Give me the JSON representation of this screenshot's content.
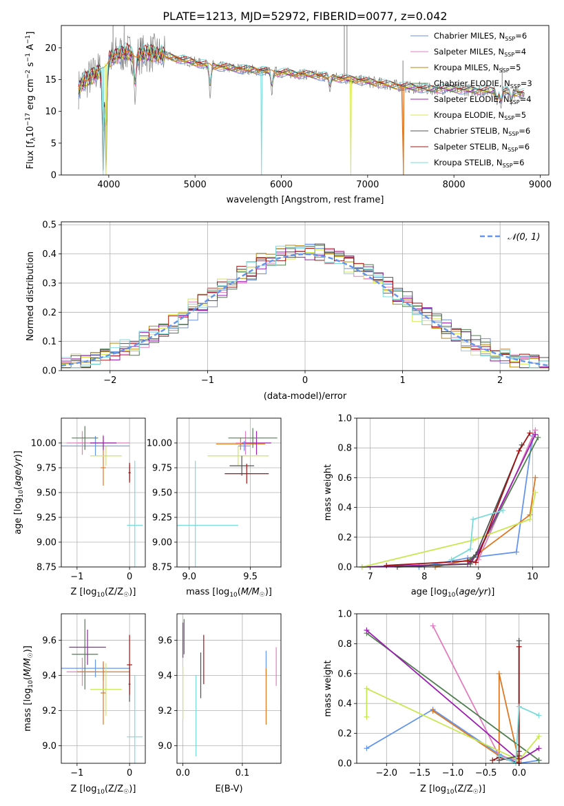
{
  "title": "PLATE=1213, MJD=52972, FIBERID=0077, z=0.042",
  "colors": {
    "Chabrier MILES": "#6a8fdc",
    "Salpeter MILES": "#e27cbe",
    "Kroupa MILES": "#b8860b",
    "Chabrier ELODIE": "#4e7e4e",
    "Salpeter ELODIE": "#9a1fb0",
    "Kroupa ELODIE": "#d4e84a",
    "Chabrier STELIB": "#505050",
    "Salpeter STELIB": "#a01212",
    "Kroupa STELIB": "#7adada",
    "Orange": "#dd7722",
    "Lime": "#c8e850",
    "Normal": "#6495ed"
  },
  "chart_data": [
    {
      "id": "spectrum",
      "type": "line",
      "xlabel": "wavelength [Angstrom, rest frame]",
      "ylabel": "Flux [f_λ 10^-17 erg cm^-2 s^-1 A^-1]",
      "xlim": [
        3450,
        9100
      ],
      "ylim": [
        0,
        23.5
      ],
      "xticks": [
        4000,
        5000,
        6000,
        7000,
        8000,
        9000
      ],
      "yticks": [
        0,
        5,
        10,
        15,
        20
      ],
      "legend": "top-right",
      "legend_entries": [
        {
          "base": "Chabrier MILES, N",
          "sub": "SSP",
          "tail": "=6",
          "color": "Chabrier MILES"
        },
        {
          "base": "Salpeter MILES, N",
          "sub": "SSP",
          "tail": "=4",
          "color": "Salpeter MILES"
        },
        {
          "base": "Kroupa MILES, N",
          "sub": "SSP",
          "tail": "=5",
          "color": "Kroupa MILES"
        },
        {
          "base": "Chabrier ELODIE, N",
          "sub": "SSP",
          "tail": "=3",
          "color": "Chabrier ELODIE"
        },
        {
          "base": "Salpeter ELODIE, N",
          "sub": "SSP",
          "tail": "=4",
          "color": "Salpeter ELODIE"
        },
        {
          "base": "Kroupa ELODIE, N",
          "sub": "SSP",
          "tail": "=5",
          "color": "Kroupa ELODIE"
        },
        {
          "base": "Chabrier STELIB, N",
          "sub": "SSP",
          "tail": "=6",
          "color": "Chabrier STELIB"
        },
        {
          "base": "Salpeter STELIB, N",
          "sub": "SSP",
          "tail": "=6",
          "color": "Salpeter STELIB"
        },
        {
          "base": "Kroupa STELIB, N",
          "sub": "SSP",
          "tail": "=6",
          "color": "Kroupa STELIB"
        }
      ],
      "continuum": {
        "x": [
          3650,
          3700,
          3800,
          3900,
          4000,
          4100,
          4200,
          4300,
          4400,
          4500,
          4700,
          4900,
          5100,
          5300,
          5500,
          5700,
          5900,
          6100,
          6300,
          6500,
          6700,
          6900,
          7100,
          7300,
          7500,
          7700,
          7900,
          8100,
          8300,
          8500,
          8700,
          8800
        ],
        "y": [
          13.5,
          14.5,
          15.5,
          16.5,
          18.0,
          19.0,
          19.3,
          18.8,
          19.0,
          19.2,
          18.6,
          18.0,
          17.4,
          17.0,
          16.7,
          16.5,
          16.2,
          16.0,
          15.8,
          15.5,
          15.2,
          14.9,
          14.5,
          14.1,
          13.8,
          13.5,
          13.6,
          13.4,
          13.3,
          13.2,
          13.0,
          12.9
        ]
      },
      "noise_until": 4650,
      "dips": [
        {
          "x": 3935,
          "y": 0
        },
        {
          "x": 3968,
          "y": 0
        },
        {
          "x": 4305,
          "y": 11
        },
        {
          "x": 5175,
          "y": 12
        },
        {
          "x": 5890,
          "y": 12.5
        },
        {
          "x": 6563,
          "y": 13
        },
        {
          "x": 8500,
          "y": 11
        },
        {
          "x": 8545,
          "y": 10.5
        },
        {
          "x": 8665,
          "y": 11
        }
      ],
      "deep_dips": [
        {
          "x": 3935,
          "color": "Kroupa STELIB"
        },
        {
          "x": 3968,
          "color": "Kroupa ELODIE"
        },
        {
          "x": 5770,
          "color": "Kroupa STELIB"
        },
        {
          "x": 6805,
          "color": "Kroupa ELODIE"
        },
        {
          "x": 7415,
          "color": "Orange"
        }
      ],
      "grey_spikes": [
        {
          "x": 4050,
          "top": 24
        },
        {
          "x": 4180,
          "top": 23.5
        },
        {
          "x": 6730,
          "top": 23.5
        },
        {
          "x": 6760,
          "top": 23.5
        },
        {
          "x": 7410,
          "top": 18
        },
        {
          "x": 8560,
          "top": 17
        }
      ],
      "orange_cut": {
        "x": 7415,
        "until": 9100
      }
    },
    {
      "id": "histogram",
      "type": "bar",
      "xlabel": "(data-model)/error",
      "ylabel": "Normed distribution",
      "xlim": [
        -2.5,
        2.5
      ],
      "ylim": [
        0,
        0.51
      ],
      "xticks": [
        -2,
        -1,
        0,
        1,
        2
      ],
      "yticks": [
        0.0,
        0.1,
        0.2,
        0.3,
        0.4,
        0.5
      ],
      "legend": "top-right",
      "legend_label": "𝒩(0, 1)",
      "bin_width": 0.1,
      "series_colors": [
        "Chabrier MILES",
        "Salpeter MILES",
        "Kroupa MILES",
        "Chabrier ELODIE",
        "Salpeter ELODIE",
        "Kroupa ELODIE",
        "Chabrier STELIB",
        "Salpeter STELIB",
        "Kroupa STELIB"
      ]
    },
    {
      "id": "age_vs_Z",
      "type": "scatter",
      "xlabel": "Z [log10(Z/Z☉)]",
      "ylabel": "age  [log10(age/yr)]",
      "xlim": [
        -1.3,
        0.3
      ],
      "ylim": [
        8.75,
        10.25
      ],
      "xticks": [
        -1,
        0
      ],
      "yticks": [
        8.75,
        9.0,
        9.25,
        9.5,
        9.75,
        10.0
      ],
      "ytick_labels": [
        "8.75",
        "9.00",
        "9.25",
        "9.50",
        "9.75",
        "10.00"
      ],
      "points": [
        {
          "x": -0.65,
          "y": 9.97,
          "ex": 0.65,
          "ey": 0.1,
          "c": "Normal"
        },
        {
          "x": -0.9,
          "y": 10.0,
          "ex": 0.3,
          "ey": 0.12,
          "c": "Salpeter MILES"
        },
        {
          "x": -0.5,
          "y": 10.0,
          "ex": 0.5,
          "ey": 0.08,
          "c": "Salpeter MILES"
        },
        {
          "x": -0.85,
          "y": 10.05,
          "ex": 0.25,
          "ey": 0.12,
          "c": "Chabrier ELODIE"
        },
        {
          "x": -0.5,
          "y": 10.0,
          "ex": 0.25,
          "ey": 0.07,
          "c": "Salpeter ELODIE"
        },
        {
          "x": -0.5,
          "y": 9.75,
          "ex": 0.05,
          "ey": 0.18,
          "c": "Orange"
        },
        {
          "x": -0.45,
          "y": 9.87,
          "ex": 0.3,
          "ey": 0.1,
          "c": "Lime"
        },
        {
          "x": 0.0,
          "y": 9.7,
          "ex": 0.02,
          "ey": 0.08,
          "c": "Chabrier STELIB"
        },
        {
          "x": 0.0,
          "y": 9.7,
          "ex": 0.02,
          "ey": 0.1,
          "c": "Salpeter STELIB"
        },
        {
          "x": 0.1,
          "y": 9.17,
          "ex": 0.15,
          "ey": 0.65,
          "c": "Kroupa STELIB"
        }
      ]
    },
    {
      "id": "age_vs_mass",
      "type": "scatter",
      "xlabel": "mass [log10(M/M☉)]",
      "xlim": [
        8.9,
        9.75
      ],
      "ylim": [
        8.75,
        10.25
      ],
      "xticks": [
        9.0,
        9.5
      ],
      "yticks": [
        8.75,
        9.0,
        9.25,
        9.5,
        9.75,
        10.0
      ],
      "ytick_labels": [
        "8.75",
        "9.00",
        "9.25",
        "9.50",
        "9.75",
        "10.00"
      ],
      "points": [
        {
          "x": 9.05,
          "y": 9.17,
          "ex": 0.35,
          "ey": 0.65,
          "c": "Kroupa STELIB"
        },
        {
          "x": 9.4,
          "y": 9.87,
          "ex": 0.25,
          "ey": 0.1,
          "c": "Lime"
        },
        {
          "x": 9.43,
          "y": 9.77,
          "ex": 0.1,
          "ey": 0.1,
          "c": "Chabrier STELIB"
        },
        {
          "x": 9.47,
          "y": 9.69,
          "ex": 0.18,
          "ey": 0.1,
          "c": "Salpeter STELIB"
        },
        {
          "x": 9.42,
          "y": 9.99,
          "ex": 0.2,
          "ey": 0.06,
          "c": "Orange"
        },
        {
          "x": 9.46,
          "y": 10.0,
          "ex": 0.08,
          "ey": 0.12,
          "c": "Salpeter MILES"
        },
        {
          "x": 9.55,
          "y": 10.0,
          "ex": 0.12,
          "ey": 0.12,
          "c": "Salpeter ELODIE"
        },
        {
          "x": 9.52,
          "y": 10.05,
          "ex": 0.2,
          "ey": 0.1,
          "c": "Chabrier ELODIE"
        },
        {
          "x": 9.45,
          "y": 9.97,
          "ex": 0.05,
          "ey": 0.05,
          "c": "Normal"
        }
      ]
    },
    {
      "id": "massweight_vs_age",
      "type": "line",
      "xlabel": "age  [log10(age/yr)]",
      "ylabel": "mass weight",
      "xlim": [
        6.75,
        10.3
      ],
      "ylim": [
        0,
        1.0
      ],
      "xticks": [
        7,
        8,
        9,
        10
      ],
      "yticks": [
        0.0,
        0.2,
        0.4,
        0.6,
        0.8,
        1.0
      ],
      "series": [
        {
          "c": "Normal",
          "x": [
            7.9,
            8.8,
            9.7,
            10.0
          ],
          "y": [
            0.0,
            0.06,
            0.1,
            0.88
          ]
        },
        {
          "c": "Salpeter MILES",
          "x": [
            8.8,
            9.0,
            10.05
          ],
          "y": [
            0.02,
            0.05,
            0.92
          ]
        },
        {
          "c": "Orange",
          "x": [
            8.2,
            8.85,
            9.95,
            10.05
          ],
          "y": [
            0.0,
            0.05,
            0.35,
            0.6
          ]
        },
        {
          "c": "Chabrier ELODIE",
          "x": [
            8.8,
            9.0,
            10.1
          ],
          "y": [
            0.04,
            0.1,
            0.87
          ]
        },
        {
          "c": "Salpeter ELODIE",
          "x": [
            6.85,
            8.8,
            9.0,
            10.05
          ],
          "y": [
            0.0,
            0.02,
            0.1,
            0.89
          ]
        },
        {
          "c": "Lime",
          "x": [
            6.85,
            8.9,
            9.95,
            10.05
          ],
          "y": [
            0.0,
            0.18,
            0.32,
            0.5
          ]
        },
        {
          "c": "Chabrier STELIB",
          "x": [
            7.5,
            8.85,
            8.95,
            9.8
          ],
          "y": [
            0.0,
            0.02,
            0.08,
            0.82
          ]
        },
        {
          "c": "Salpeter STELIB",
          "x": [
            7.3,
            8.8,
            8.95,
            9.75,
            9.95
          ],
          "y": [
            0.01,
            0.04,
            0.03,
            0.78,
            0.9
          ]
        },
        {
          "c": "Kroupa STELIB",
          "x": [
            8.5,
            8.85,
            8.9,
            9.45
          ],
          "y": [
            0.05,
            0.12,
            0.32,
            0.38
          ]
        }
      ]
    },
    {
      "id": "mass_vs_Z",
      "type": "scatter",
      "xlabel": "Z [log10(Z/Z☉)]",
      "ylabel": "mass [log10(M/M☉)]",
      "xlim": [
        -1.3,
        0.3
      ],
      "ylim": [
        8.9,
        9.75
      ],
      "xticks": [
        -1,
        0
      ],
      "yticks": [
        9.0,
        9.2,
        9.4,
        9.6
      ],
      "points": [
        {
          "x": -0.65,
          "y": 9.44,
          "ex": 0.65,
          "ey": 0.05,
          "c": "Normal"
        },
        {
          "x": -0.9,
          "y": 9.42,
          "ex": 0.3,
          "ey": 0.08,
          "c": "Salpeter MILES"
        },
        {
          "x": -0.85,
          "y": 9.52,
          "ex": 0.25,
          "ey": 0.2,
          "c": "Chabrier ELODIE"
        },
        {
          "x": -0.8,
          "y": 9.56,
          "ex": 0.35,
          "ey": 0.1,
          "c": "Salpeter ELODIE"
        },
        {
          "x": -0.5,
          "y": 9.42,
          "ex": 0.5,
          "ey": 0.05,
          "c": "Orange"
        },
        {
          "x": -0.5,
          "y": 9.3,
          "ex": 0.05,
          "ey": 0.18,
          "c": "Orange"
        },
        {
          "x": -0.45,
          "y": 9.32,
          "ex": 0.3,
          "ey": 0.15,
          "c": "Lime"
        },
        {
          "x": 0.0,
          "y": 9.35,
          "ex": 0.02,
          "ey": 0.1,
          "c": "Chabrier STELIB"
        },
        {
          "x": 0.0,
          "y": 9.46,
          "ex": 0.05,
          "ey": 0.17,
          "c": "Salpeter STELIB"
        },
        {
          "x": 0.1,
          "y": 9.05,
          "ex": 0.15,
          "ey": 0.35,
          "c": "Kroupa STELIB"
        }
      ]
    },
    {
      "id": "mass_vs_EBV",
      "type": "scatter",
      "xlabel": "E(B-V)",
      "xlim": [
        -0.01,
        0.165
      ],
      "ylim": [
        8.9,
        9.75
      ],
      "xticks": [
        0.0,
        0.1
      ],
      "yticks": [
        9.0,
        9.2,
        9.4,
        9.6
      ],
      "points": [
        {
          "x": 0.0,
          "y": 9.6,
          "ex": 0.0,
          "ey": 0.1,
          "c": "Salpeter ELODIE"
        },
        {
          "x": 0.002,
          "y": 9.62,
          "ex": 0.0,
          "ey": 0.1,
          "c": "Chabrier ELODIE"
        },
        {
          "x": 0.0,
          "y": 9.3,
          "ex": 0.0,
          "ey": 0.15,
          "c": "Lime"
        },
        {
          "x": 0.022,
          "y": 9.17,
          "ex": 0.0,
          "ey": 0.23,
          "c": "Kroupa STELIB"
        },
        {
          "x": 0.03,
          "y": 9.4,
          "ex": 0.0,
          "ey": 0.13,
          "c": "Chabrier STELIB"
        },
        {
          "x": 0.035,
          "y": 9.49,
          "ex": 0.0,
          "ey": 0.14,
          "c": "Salpeter STELIB"
        },
        {
          "x": 0.14,
          "y": 9.47,
          "ex": 0.0,
          "ey": 0.07,
          "c": "Normal"
        },
        {
          "x": 0.14,
          "y": 9.28,
          "ex": 0.0,
          "ey": 0.16,
          "c": "Orange"
        },
        {
          "x": 0.157,
          "y": 9.45,
          "ex": 0.0,
          "ey": 0.11,
          "c": "Salpeter MILES"
        }
      ]
    },
    {
      "id": "massweight_vs_Z",
      "type": "line",
      "xlabel": "Z [log10(Z/Z☉)]",
      "ylabel": "mass weight",
      "xlim": [
        -2.45,
        0.45
      ],
      "ylim": [
        0,
        1.0
      ],
      "xticks": [
        -2.0,
        -1.5,
        -1.0,
        -0.5,
        0.0
      ],
      "xtick_labels": [
        "−2.0",
        "−1.5",
        "−1.0",
        "−0.5",
        "0.0"
      ],
      "yticks": [
        0.0,
        0.2,
        0.4,
        0.6,
        0.8,
        1.0
      ],
      "series": [
        {
          "c": "Normal",
          "x": [
            -2.3,
            -1.3,
            -0.3,
            0.0,
            0.3
          ],
          "y": [
            0.1,
            0.36,
            0.06,
            0.0,
            0.02
          ]
        },
        {
          "c": "Salpeter MILES",
          "x": [
            -1.3,
            -0.3,
            0.0
          ],
          "y": [
            0.92,
            0.05,
            0.02
          ]
        },
        {
          "c": "Orange",
          "x": [
            -1.3,
            -0.3,
            -0.3,
            0.0
          ],
          "y": [
            0.35,
            0.05,
            0.6,
            0.01
          ]
        },
        {
          "c": "Chabrier ELODIE",
          "x": [
            -2.3,
            0.3
          ],
          "y": [
            0.87,
            0.02
          ]
        },
        {
          "c": "Salpeter ELODIE",
          "x": [
            -2.3,
            0.0,
            0.3
          ],
          "y": [
            0.89,
            0.02,
            0.1
          ]
        },
        {
          "c": "Lime",
          "x": [
            -2.3,
            -2.3,
            0.0,
            0.3
          ],
          "y": [
            0.31,
            0.5,
            0.02,
            0.18
          ]
        },
        {
          "c": "Chabrier STELIB",
          "x": [
            -0.3,
            0.0,
            0.0,
            0.0
          ],
          "y": [
            0.02,
            0.05,
            0.82,
            0.08
          ]
        },
        {
          "c": "Salpeter STELIB",
          "x": [
            -0.4,
            -0.3,
            0.0,
            0.0,
            0.0
          ],
          "y": [
            0.02,
            0.04,
            0.0,
            0.78,
            0.03
          ]
        },
        {
          "c": "Kroupa STELIB",
          "x": [
            -0.3,
            -0.05,
            0.0,
            0.3
          ],
          "y": [
            0.05,
            0.0,
            0.38,
            0.32
          ]
        }
      ]
    }
  ]
}
